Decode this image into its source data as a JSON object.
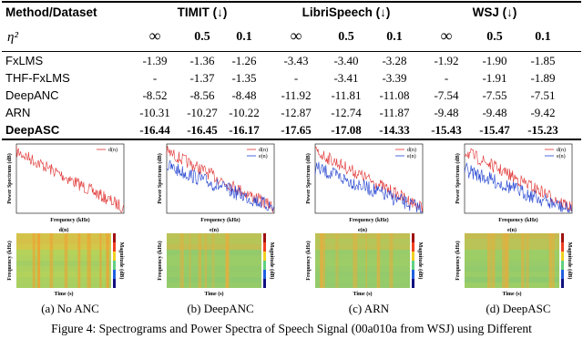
{
  "table": {
    "header": {
      "method": "Method/Dataset",
      "groups": [
        "TIMIT (↓)",
        "LibriSpeech (↓)",
        "WSJ (↓)"
      ]
    },
    "subheader": {
      "label": "η²",
      "cols": [
        "∞",
        "0.5",
        "0.1",
        "∞",
        "0.5",
        "0.1",
        "∞",
        "0.5",
        "0.1"
      ]
    },
    "rows": [
      [
        "FxLMS",
        "-1.39",
        "-1.36",
        "-1.26",
        "-3.43",
        "-3.40",
        "-3.28",
        "-1.92",
        "-1.90",
        "-1.85"
      ],
      [
        "THF-FxLMS",
        "-",
        "-1.37",
        "-1.35",
        "-",
        "-3.41",
        "-3.39",
        "-",
        "-1.91",
        "-1.89"
      ],
      [
        "DeepANC",
        "-8.52",
        "-8.56",
        "-8.48",
        "-11.92",
        "-11.81",
        "-11.08",
        "-7.54",
        "-7.55",
        "-7.51"
      ],
      [
        "ARN",
        "-10.31",
        "-10.27",
        "-10.22",
        "-12.87",
        "-12.74",
        "-11.87",
        "-9.48",
        "-9.48",
        "-9.42"
      ],
      [
        "DeepASC",
        "-16.44",
        "-16.45",
        "-16.17",
        "-17.65",
        "-17.08",
        "-14.33",
        "-15.43",
        "-15.47",
        "-15.23"
      ]
    ]
  },
  "panels": [
    {
      "caption": "(a) No ANC",
      "legend": [
        "d(n)"
      ],
      "spectrum_ylabel": "Power Spectrum (dB)",
      "spectrum_xlabel": "Frequency (kHz)",
      "spectrogram_title": "d(n)",
      "spectrogram_ylabel": "Frequency (kHz)",
      "spectrogram_xlabel": "Time (s)",
      "colorbar_label": "Magnitude (dB)"
    },
    {
      "caption": "(b) DeepANC",
      "legend": [
        "d(n)",
        "e(n)"
      ],
      "spectrum_ylabel": "Power Spectrum (dB)",
      "spectrum_xlabel": "Frequency (kHz)",
      "spectrogram_title": "e(n)",
      "spectrogram_ylabel": "Frequency (kHz)",
      "spectrogram_xlabel": "Time (s)",
      "colorbar_label": "Magnitude (dB)"
    },
    {
      "caption": "(c) ARN",
      "legend": [
        "d(n)",
        "e(n)"
      ],
      "spectrum_ylabel": "Power Spectrum (dB)",
      "spectrum_xlabel": "Frequency (kHz)",
      "spectrogram_title": "e(n)",
      "spectrogram_ylabel": "Frequency (kHz)",
      "spectrogram_xlabel": "Time (s)",
      "colorbar_label": "Magnitude (dB)"
    },
    {
      "caption": "(d) DeepASC",
      "legend": [
        "d(n)",
        "e(n)"
      ],
      "spectrum_ylabel": "Power Spectrum (dB)",
      "spectrum_xlabel": "Frequency (kHz)",
      "spectrogram_title": "e(n)",
      "spectrogram_ylabel": "Frequency (kHz)",
      "spectrogram_xlabel": "Time (s)",
      "colorbar_label": "Magnitude (dB)"
    }
  ],
  "figure_caption": "Figure 4: Spectrograms and Power Spectra of Speech Signal (00a010a from WSJ) using Different"
}
